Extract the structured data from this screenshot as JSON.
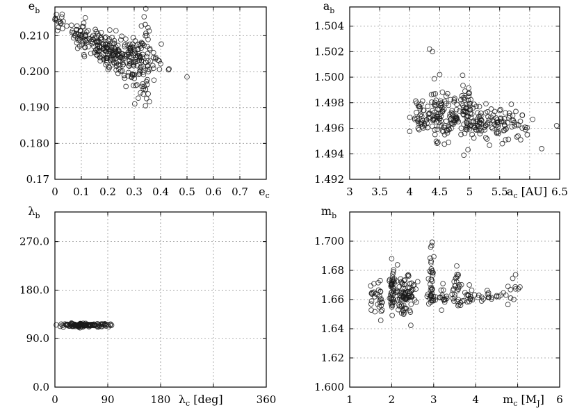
{
  "chart_data": [
    {
      "id": "eb-vs-ec",
      "type": "scatter",
      "xlabel": {
        "base": "e",
        "sub": "c",
        "suffix": ""
      },
      "ylabel": {
        "base": "e",
        "sub": "b"
      },
      "xlim": [
        0,
        0.8
      ],
      "ylim": [
        0.17,
        0.218
      ],
      "xticks": [
        0,
        0.1,
        0.2,
        0.3,
        0.4,
        0.5,
        0.6,
        0.7
      ],
      "xtick_labels": [
        "0",
        "0.1",
        "0.2",
        "0.3",
        "0.4",
        "0.5",
        "0.6",
        "0.7"
      ],
      "yticks": [
        0.17,
        0.18,
        0.19,
        0.2,
        0.21
      ],
      "ytick_labels": [
        "0.17",
        "0.180",
        "0.190",
        "0.200",
        "0.210"
      ],
      "grid": true,
      "clusters": [
        {
          "x": 0.02,
          "y": 0.2135,
          "sx": 0.02,
          "sy": 0.0015,
          "n": 14
        },
        {
          "x": 0.09,
          "y": 0.2105,
          "sx": 0.025,
          "sy": 0.0015,
          "n": 30
        },
        {
          "x": 0.16,
          "y": 0.2075,
          "sx": 0.035,
          "sy": 0.002,
          "n": 80
        },
        {
          "x": 0.24,
          "y": 0.205,
          "sx": 0.04,
          "sy": 0.0022,
          "n": 100
        },
        {
          "x": 0.3,
          "y": 0.203,
          "sx": 0.03,
          "sy": 0.003,
          "n": 75
        },
        {
          "x": 0.33,
          "y": 0.197,
          "sx": 0.02,
          "sy": 0.003,
          "n": 28
        },
        {
          "x": 0.34,
          "y": 0.21,
          "sx": 0.012,
          "sy": 0.003,
          "n": 14
        },
        {
          "x": 0.38,
          "y": 0.203,
          "sx": 0.02,
          "sy": 0.002,
          "n": 12
        }
      ],
      "points": [
        [
          0.5,
          0.1985
        ],
        [
          0.344,
          0.2175
        ],
        [
          0.343,
          0.1905
        ],
        [
          0.0,
          0.2145
        ],
        [
          0.43,
          0.2005
        ]
      ]
    },
    {
      "id": "ab-vs-ac",
      "type": "scatter",
      "xlabel": {
        "base": "a",
        "sub": "c",
        "suffix": " [AU]"
      },
      "ylabel": {
        "base": "a",
        "sub": "b"
      },
      "xlim": [
        3,
        6.5
      ],
      "ylim": [
        1.492,
        1.5055
      ],
      "xticks": [
        3,
        3.5,
        4,
        4.5,
        5,
        5.5,
        6,
        6.5
      ],
      "xtick_labels": [
        "3",
        "3.5",
        "4",
        "4.5",
        "5",
        "5.5",
        "",
        "6.5"
      ],
      "yticks": [
        1.492,
        1.494,
        1.496,
        1.498,
        1.5,
        1.502,
        1.504
      ],
      "ytick_labels": [
        "1.492",
        "1.494",
        "1.496",
        "1.498",
        "1.500",
        "1.502",
        "1.504"
      ],
      "grid": true,
      "clusters": [
        {
          "x": 4.2,
          "y": 1.4968,
          "sx": 0.08,
          "sy": 0.0008,
          "n": 40
        },
        {
          "x": 4.45,
          "y": 1.4972,
          "sx": 0.1,
          "sy": 0.0009,
          "n": 60
        },
        {
          "x": 4.7,
          "y": 1.4967,
          "sx": 0.1,
          "sy": 0.0008,
          "n": 50
        },
        {
          "x": 4.95,
          "y": 1.4975,
          "sx": 0.04,
          "sy": 0.0012,
          "n": 45
        },
        {
          "x": 5.15,
          "y": 1.4964,
          "sx": 0.1,
          "sy": 0.0007,
          "n": 45
        },
        {
          "x": 5.45,
          "y": 1.4962,
          "sx": 0.12,
          "sy": 0.0006,
          "n": 45
        },
        {
          "x": 5.75,
          "y": 1.4962,
          "sx": 0.1,
          "sy": 0.0006,
          "n": 25
        }
      ],
      "points": [
        [
          4.33,
          1.5022
        ],
        [
          4.38,
          1.502
        ],
        [
          6.05,
          1.4967
        ],
        [
          6.2,
          1.4944
        ],
        [
          6.45,
          1.4962
        ],
        [
          4.5,
          1.5002
        ],
        [
          5.6,
          1.4951
        ],
        [
          5.85,
          1.4951
        ]
      ]
    },
    {
      "id": "lambdab-vs-lambdac",
      "type": "scatter",
      "xlabel": {
        "base": "λ",
        "sub": "c",
        "suffix": " [deg]"
      },
      "ylabel": {
        "base": "λ",
        "sub": "b"
      },
      "xlim": [
        0,
        360
      ],
      "ylim": [
        0,
        325
      ],
      "xticks": [
        0,
        90,
        180,
        270,
        360
      ],
      "xtick_labels": [
        "0",
        "90",
        "",
        "",
        "360"
      ],
      "extra_xticks": [
        180
      ],
      "yticks": [
        0,
        90,
        180,
        270
      ],
      "ytick_labels": [
        "0.0",
        "90.0",
        "180.0",
        "270.0"
      ],
      "grid": true,
      "clusters": [
        {
          "x": 50,
          "y": 115,
          "sx": 22,
          "sy": 1.5,
          "n": 130
        }
      ],
      "points": []
    },
    {
      "id": "mb-vs-mc",
      "type": "scatter",
      "xlabel": {
        "base": "m",
        "sub": "c",
        "suffix": " [M",
        "suffix_sub": "J",
        "suffix_end": "]"
      },
      "ylabel": {
        "base": "m",
        "sub": "b"
      },
      "xlim": [
        1,
        6
      ],
      "ylim": [
        1.6,
        1.72
      ],
      "xticks": [
        1,
        2,
        3,
        4,
        5,
        6
      ],
      "xtick_labels": [
        "1",
        "2",
        "3",
        "4",
        "",
        "6"
      ],
      "yticks": [
        1.6,
        1.62,
        1.64,
        1.66,
        1.68,
        1.7
      ],
      "ytick_labels": [
        "1.600",
        "1.62",
        "1.64",
        "1.66",
        "1.68",
        "1.700"
      ],
      "grid": true,
      "clusters": [
        {
          "x": 1.55,
          "y": 1.662,
          "sx": 0.05,
          "sy": 0.005,
          "n": 12
        },
        {
          "x": 1.72,
          "y": 1.664,
          "sx": 0.05,
          "sy": 0.007,
          "n": 18
        },
        {
          "x": 2.02,
          "y": 1.665,
          "sx": 0.04,
          "sy": 0.009,
          "n": 40
        },
        {
          "x": 2.25,
          "y": 1.664,
          "sx": 0.1,
          "sy": 0.007,
          "n": 60
        },
        {
          "x": 2.45,
          "y": 1.666,
          "sx": 0.08,
          "sy": 0.007,
          "n": 30
        },
        {
          "x": 2.95,
          "y": 1.672,
          "sx": 0.04,
          "sy": 0.01,
          "n": 35
        },
        {
          "x": 3.25,
          "y": 1.662,
          "sx": 0.15,
          "sy": 0.004,
          "n": 25
        },
        {
          "x": 3.55,
          "y": 1.666,
          "sx": 0.06,
          "sy": 0.007,
          "n": 25
        },
        {
          "x": 3.85,
          "y": 1.661,
          "sx": 0.08,
          "sy": 0.004,
          "n": 15
        },
        {
          "x": 4.3,
          "y": 1.662,
          "sx": 0.15,
          "sy": 0.002,
          "n": 14
        },
        {
          "x": 4.9,
          "y": 1.664,
          "sx": 0.1,
          "sy": 0.004,
          "n": 12
        }
      ],
      "points": [
        [
          2.95,
          1.697
        ],
        [
          3.55,
          1.683
        ],
        [
          2.0,
          1.688
        ],
        [
          4.95,
          1.677
        ],
        [
          3.85,
          1.67
        ],
        [
          4.5,
          1.662
        ],
        [
          4.55,
          1.662
        ],
        [
          4.6,
          1.663
        ]
      ]
    }
  ]
}
